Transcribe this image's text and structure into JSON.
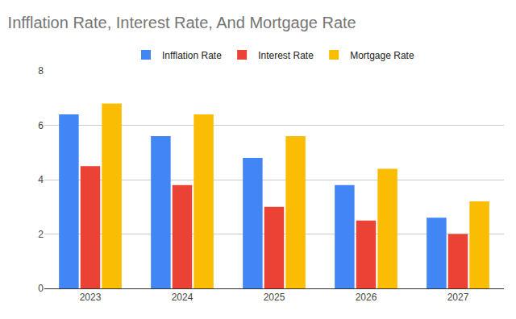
{
  "chart_data": {
    "type": "bar",
    "title": "Infflation Rate, Interest Rate, And Mortgage Rate",
    "categories": [
      "2023",
      "2024",
      "2025",
      "2026",
      "2027"
    ],
    "series": [
      {
        "name": "Infflation Rate",
        "color": "#4285f4",
        "values": [
          6.4,
          5.6,
          4.8,
          3.8,
          2.6
        ]
      },
      {
        "name": "Interest Rate",
        "color": "#ea4335",
        "values": [
          4.5,
          3.8,
          3.0,
          2.5,
          2.0
        ]
      },
      {
        "name": "Mortgage Rate",
        "color": "#fbbc04",
        "values": [
          6.8,
          6.4,
          5.6,
          4.4,
          3.2
        ]
      }
    ],
    "ylim": [
      0,
      8
    ],
    "yticks": [
      0,
      2,
      4,
      6,
      8
    ],
    "grid": true,
    "legend": "top"
  }
}
